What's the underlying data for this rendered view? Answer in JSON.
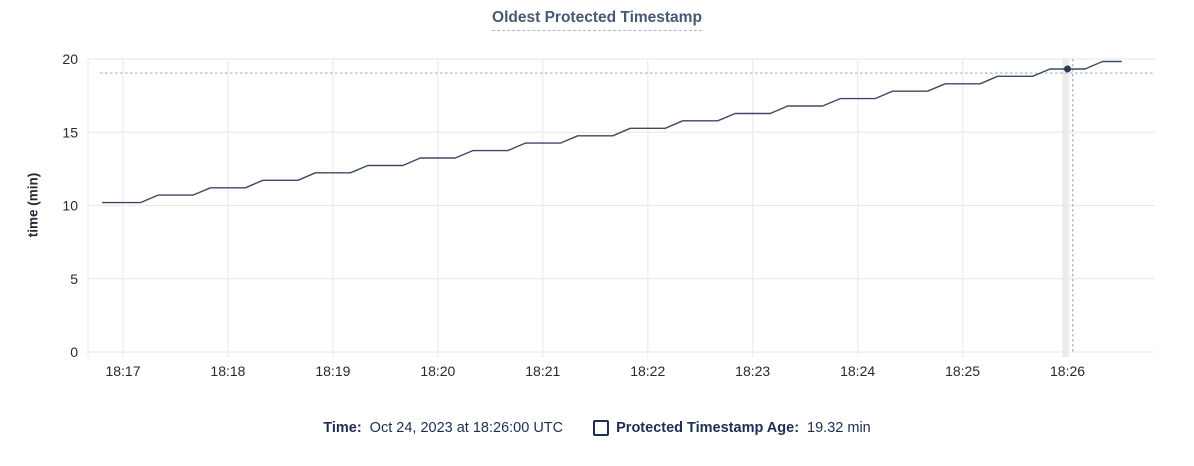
{
  "chart_data": {
    "type": "line",
    "title": "Oldest Protected Timestamp",
    "xlabel": "",
    "ylabel": "time (min)",
    "ylim": [
      0,
      20
    ],
    "y_ticks": [
      0,
      5,
      10,
      15,
      20
    ],
    "xlim_seconds": [
      40,
      650
    ],
    "x_ticks": [
      {
        "t": 40,
        "label": ""
      },
      {
        "t": 60,
        "label": "18:17"
      },
      {
        "t": 120,
        "label": "18:18"
      },
      {
        "t": 180,
        "label": "18:19"
      },
      {
        "t": 240,
        "label": "18:20"
      },
      {
        "t": 300,
        "label": "18:21"
      },
      {
        "t": 360,
        "label": "18:22"
      },
      {
        "t": 420,
        "label": "18:23"
      },
      {
        "t": 480,
        "label": "18:24"
      },
      {
        "t": 540,
        "label": "18:25"
      },
      {
        "t": 600,
        "label": "18:26"
      }
    ],
    "grid": true,
    "legend_position": "bottom",
    "series": [
      {
        "name": "Protected Timestamp Age",
        "color": "#3b4a63",
        "points": [
          [
            48,
            10.2
          ],
          [
            70,
            10.2
          ],
          [
            80,
            10.71
          ],
          [
            100,
            10.71
          ],
          [
            110,
            11.21
          ],
          [
            130,
            11.21
          ],
          [
            140,
            11.72
          ],
          [
            160,
            11.72
          ],
          [
            170,
            12.23
          ],
          [
            190,
            12.23
          ],
          [
            200,
            12.73
          ],
          [
            220,
            12.73
          ],
          [
            230,
            13.24
          ],
          [
            250,
            13.24
          ],
          [
            260,
            13.75
          ],
          [
            280,
            13.75
          ],
          [
            290,
            14.26
          ],
          [
            310,
            14.26
          ],
          [
            320,
            14.76
          ],
          [
            340,
            14.76
          ],
          [
            350,
            15.27
          ],
          [
            370,
            15.27
          ],
          [
            380,
            15.78
          ],
          [
            400,
            15.78
          ],
          [
            410,
            16.28
          ],
          [
            430,
            16.28
          ],
          [
            440,
            16.79
          ],
          [
            460,
            16.79
          ],
          [
            470,
            17.3
          ],
          [
            490,
            17.3
          ],
          [
            500,
            17.8
          ],
          [
            520,
            17.8
          ],
          [
            530,
            18.31
          ],
          [
            550,
            18.31
          ],
          [
            560,
            18.82
          ],
          [
            580,
            18.82
          ],
          [
            590,
            19.32
          ],
          [
            610,
            19.32
          ],
          [
            620,
            19.83
          ],
          [
            631,
            19.83
          ]
        ]
      }
    ],
    "hover": {
      "band_t": 599,
      "crosshair_t": 603,
      "crosshair_v": 19.04,
      "point_t": 600,
      "point_v": 19.32
    }
  },
  "legend": {
    "time_label": "Time:",
    "time_value": "Oct 24, 2023 at 18:26:00 UTC",
    "series_label": "Protected Timestamp Age:",
    "series_value": "19.32 min"
  },
  "colors": {
    "line": "#3b4a63",
    "point": "#2c3a52",
    "grid_h": "#e7e7e7",
    "grid_v": "#efefef",
    "hover_band": "#ebebeb",
    "crosshair": "#9db0bf",
    "title": "#475872",
    "tick_text": "#242a35",
    "legend_text": "#1c2e52"
  }
}
